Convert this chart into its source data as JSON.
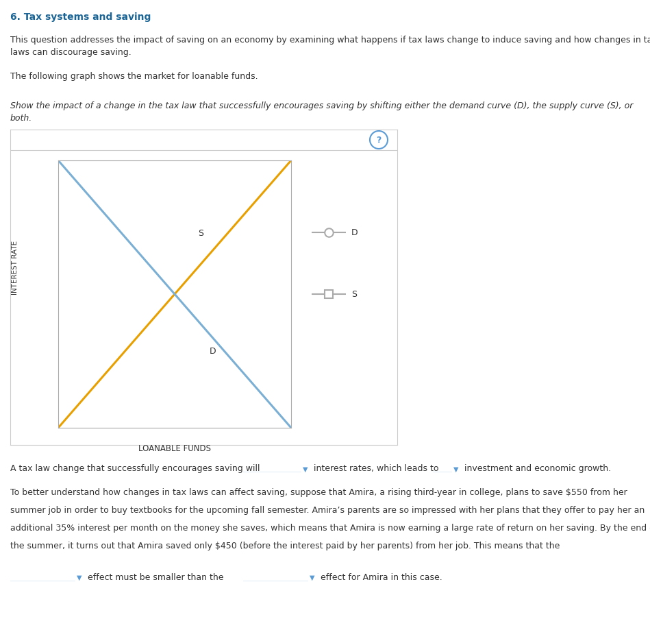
{
  "title": "6. Tax systems and saving",
  "para1a": "This question addresses the impact of saving on an economy by examining what happens if tax laws change to induce saving and how changes in tax",
  "para1b": "laws can discourage saving.",
  "para2": "The following graph shows the market for loanable funds.",
  "italic_a": "Show the impact of a change in the tax law that successfully encourages saving by shifting either the demand curve (D), the supply curve (S), or",
  "italic_b": "both.",
  "ylabel": "INTEREST RATE",
  "xlabel": "LOANABLE FUNDS",
  "S_label": "S",
  "D_label": "D",
  "S_color": "#E8A000",
  "D_color": "#7BAFD4",
  "legend_D_label": "D",
  "legend_S_label": "S",
  "sentence1_a": "A tax law change that successfully encourages saving will",
  "sentence1_b": " interest rates, which leads to ",
  "sentence1_c": " investment and economic growth.",
  "para3a": "To better understand how changes in tax laws can affect saving, suppose that Amira, a rising third-year in college, plans to save $550 from her",
  "para3b": "summer job in order to buy textbooks for the upcoming fall semester. Amira’s parents are so impressed with her plans that they offer to pay her an",
  "para3c": "additional 35% interest per month on the money she saves, which means that Amira is now earning a large rate of return on her saving. By the end of",
  "para3d": "the summer, it turns out that Amira saved only $450 (before the interest paid by her parents) from her job. This means that the",
  "last_mid": " effect must be smaller than the ",
  "last_end": " effect for Amira in this case.",
  "bg": "#ffffff",
  "text_color": "#333333",
  "title_color": "#1a6496",
  "border_color": "#cccccc",
  "axis_color": "#aaaaaa",
  "legend_line_color": "#aaaaaa",
  "dropdown_color": "#5b9bd5",
  "question_circle_color": "#5b9bd5"
}
